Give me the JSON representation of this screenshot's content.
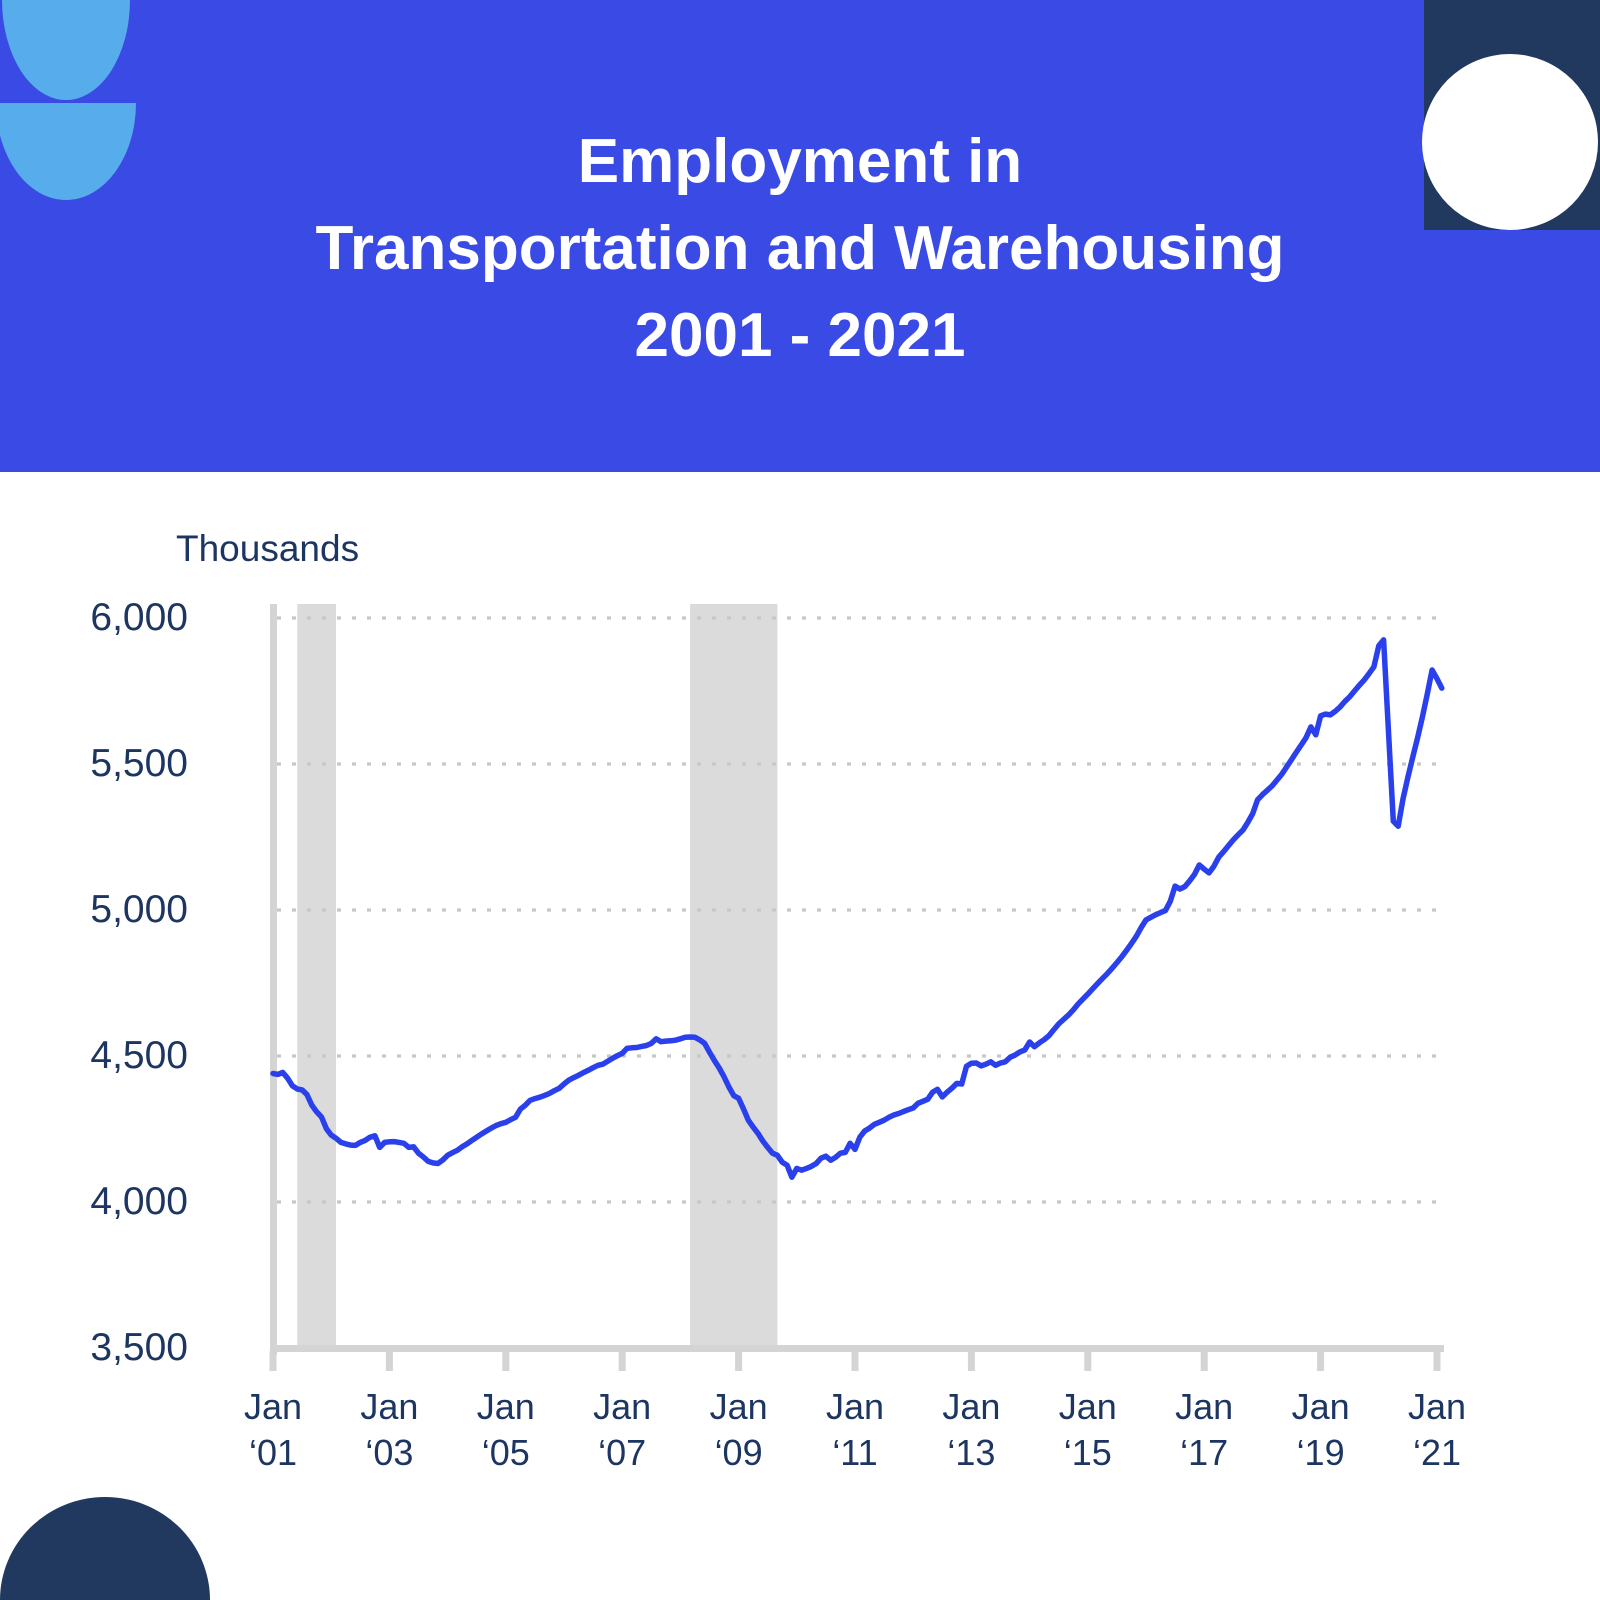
{
  "header": {
    "title_line1": "Employment in",
    "title_line2": "Transportation and Warehousing",
    "title_line3": "2001 - 2021",
    "background_color": "#3a4ae4",
    "text_color": "#ffffff"
  },
  "decorations": {
    "light_blue": "#57aceb",
    "dark_navy": "#21395f",
    "white": "#ffffff"
  },
  "chart_data": {
    "type": "line",
    "title": "Employment in Transportation and Warehousing 2001 - 2021",
    "unit_label": "Thousands",
    "ylabel": "Thousands",
    "xlabel": "",
    "ylim": [
      3500,
      6000
    ],
    "y_tick_values": [
      6000,
      5500,
      5000,
      4500,
      4000,
      3500
    ],
    "y_tick_labels": [
      "6,000",
      "5,500",
      "5,000",
      "4,500",
      "4,000",
      "3,500"
    ],
    "x_tick_labels": [
      {
        "line1": "Jan",
        "line2": "‘01"
      },
      {
        "line1": "Jan",
        "line2": "‘03"
      },
      {
        "line1": "Jan",
        "line2": "‘05"
      },
      {
        "line1": "Jan",
        "line2": "‘07"
      },
      {
        "line1": "Jan",
        "line2": "‘09"
      },
      {
        "line1": "Jan",
        "line2": "‘11"
      },
      {
        "line1": "Jan",
        "line2": "‘13"
      },
      {
        "line1": "Jan",
        "line2": "‘15"
      },
      {
        "line1": "Jan",
        "line2": "‘17"
      },
      {
        "line1": "Jan",
        "line2": "‘19"
      },
      {
        "line1": "Jan",
        "line2": "‘21"
      }
    ],
    "x_start": "Jan 2001",
    "x_end": "Feb 2021",
    "points_per_year": 12,
    "grid": "dotted horizontal gridlines",
    "legend": "none",
    "line_color": "#2940ec",
    "recession_band_color": "#dbdbdb",
    "axis_color": "#d4d4d4",
    "gridline_color": "#c8c8c8",
    "label_color": "#1d3561",
    "recession_bands": [
      {
        "label": "2001 recession",
        "start_month_index": 5,
        "end_month_index": 13
      },
      {
        "label": "2008-09 recession",
        "start_month_index": 86,
        "end_month_index": 104
      }
    ],
    "series": [
      {
        "name": "Employment in Transportation and Warehousing (thousands)",
        "monthly_values": [
          4440,
          4437,
          4444,
          4424,
          4398,
          4387,
          4384,
          4368,
          4332,
          4309,
          4291,
          4251,
          4229,
          4218,
          4204,
          4199,
          4195,
          4194,
          4204,
          4211,
          4222,
          4227,
          4187,
          4204,
          4206,
          4207,
          4204,
          4201,
          4187,
          4189,
          4167,
          4154,
          4139,
          4134,
          4132,
          4144,
          4160,
          4169,
          4177,
          4189,
          4199,
          4211,
          4222,
          4233,
          4243,
          4253,
          4262,
          4268,
          4273,
          4282,
          4290,
          4318,
          4331,
          4348,
          4354,
          4359,
          4365,
          4372,
          4381,
          4389,
          4404,
          4417,
          4426,
          4434,
          4443,
          4451,
          4460,
          4468,
          4472,
          4482,
          4492,
          4501,
          4509,
          4526,
          4528,
          4529,
          4533,
          4536,
          4543,
          4559,
          4549,
          4551,
          4552,
          4554,
          4559,
          4564,
          4565,
          4564,
          4555,
          4543,
          4513,
          4485,
          4459,
          4429,
          4394,
          4364,
          4355,
          4319,
          4280,
          4257,
          4235,
          4209,
          4187,
          4167,
          4160,
          4136,
          4126,
          4085,
          4115,
          4109,
          4115,
          4122,
          4132,
          4150,
          4157,
          4143,
          4153,
          4167,
          4170,
          4201,
          4180,
          4222,
          4243,
          4253,
          4266,
          4273,
          4280,
          4290,
          4298,
          4303,
          4310,
          4316,
          4322,
          4338,
          4345,
          4352,
          4376,
          4386,
          4360,
          4376,
          4390,
          4406,
          4404,
          4465,
          4475,
          4476,
          4466,
          4472,
          4480,
          4468,
          4476,
          4480,
          4496,
          4503,
          4514,
          4521,
          4548,
          4532,
          4545,
          4556,
          4570,
          4590,
          4610,
          4625,
          4640,
          4658,
          4678,
          4695,
          4712,
          4730,
          4748,
          4765,
          4782,
          4800,
          4820,
          4840,
          4862,
          4885,
          4910,
          4940,
          4966,
          4975,
          4984,
          4991,
          4998,
          5030,
          5082,
          5072,
          5080,
          5100,
          5122,
          5154,
          5140,
          5127,
          5150,
          5181,
          5200,
          5220,
          5240,
          5258,
          5274,
          5300,
          5330,
          5377,
          5395,
          5410,
          5425,
          5445,
          5465,
          5490,
          5515,
          5540,
          5565,
          5590,
          5627,
          5600,
          5665,
          5671,
          5668,
          5680,
          5695,
          5714,
          5730,
          5750,
          5770,
          5788,
          5810,
          5833,
          5905,
          5925,
          5610,
          5304,
          5287,
          5380,
          5455,
          5524,
          5590,
          5661,
          5740,
          5822,
          5792,
          5760
        ]
      }
    ]
  }
}
